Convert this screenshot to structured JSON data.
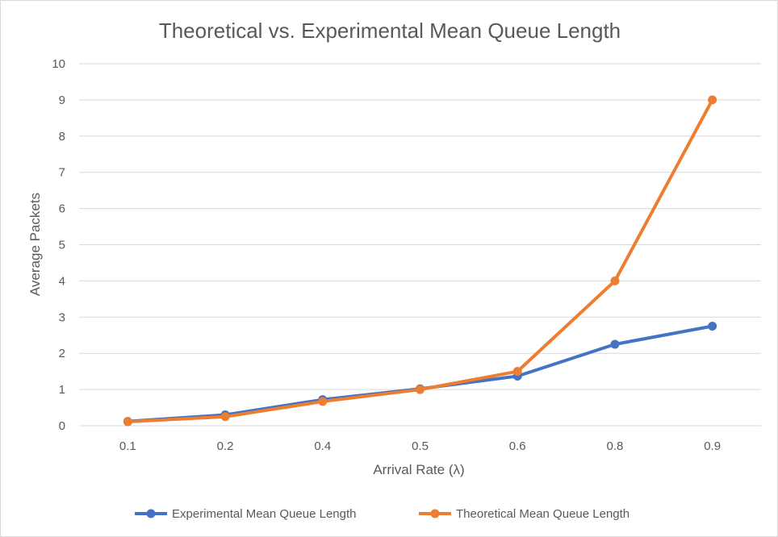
{
  "chart_data": {
    "type": "line",
    "title": "Theoretical vs. Experimental Mean Queue Length",
    "xlabel": "Arrival Rate (λ)",
    "ylabel": "Average Packets",
    "categories": [
      "0.1",
      "0.2",
      "0.4",
      "0.5",
      "0.6",
      "0.8",
      "0.9"
    ],
    "yticks": [
      "0",
      "1",
      "2",
      "3",
      "4",
      "5",
      "6",
      "7",
      "8",
      "9",
      "10"
    ],
    "ylim": [
      0,
      10
    ],
    "grid": true,
    "legend_position": "bottom",
    "series": [
      {
        "name": "Experimental Mean Queue Length",
        "color": "#4472c4",
        "values": [
          0.12,
          0.3,
          0.72,
          1.02,
          1.37,
          2.25,
          2.75
        ]
      },
      {
        "name": "Theoretical Mean Queue Length",
        "color": "#ed7d31",
        "values": [
          0.11,
          0.25,
          0.67,
          1.0,
          1.5,
          4.0,
          9.0
        ]
      }
    ]
  }
}
